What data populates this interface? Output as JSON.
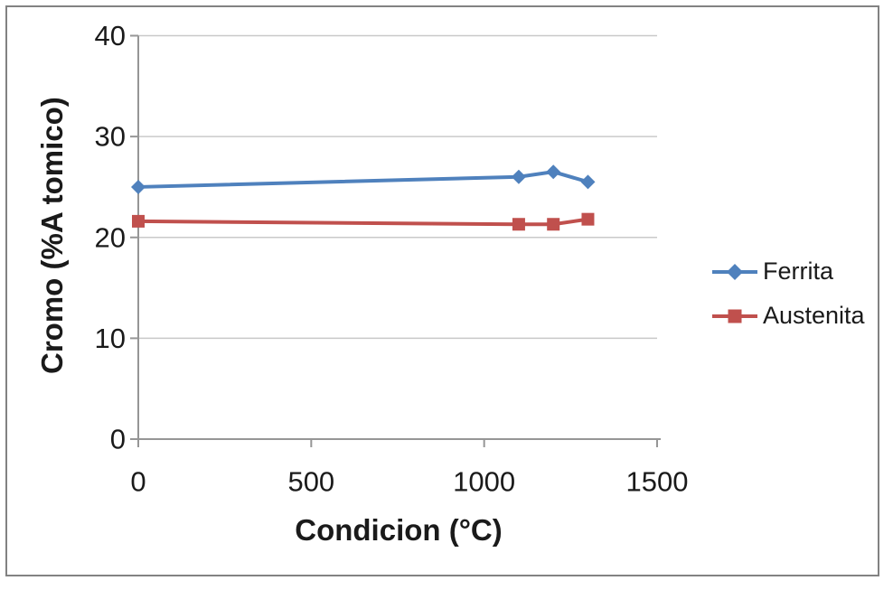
{
  "chart_data": {
    "type": "line",
    "x": [
      0,
      1100,
      1200,
      1300
    ],
    "series": [
      {
        "name": "Ferrita",
        "color": "#4F81BD",
        "marker": "diamond",
        "values": [
          25.0,
          26.0,
          26.5,
          25.5
        ]
      },
      {
        "name": "Austenita",
        "color": "#C0504D",
        "marker": "square",
        "values": [
          21.6,
          21.3,
          21.3,
          21.8
        ]
      }
    ],
    "title": "",
    "xlabel": "Condicion (°C)",
    "ylabel": "Cromo (%A tomico)",
    "xlim": [
      0,
      1500
    ],
    "ylim": [
      0,
      40
    ],
    "xticks": [
      "0",
      "500",
      "1000",
      "1500"
    ],
    "yticks": [
      "0",
      "10",
      "20",
      "30",
      "40"
    ],
    "grid": "horizontal",
    "legend_position": "right",
    "colors": {
      "gridline": "#C9C9C9",
      "axis": "#969696",
      "tick_text": "#1a1a1a",
      "frame_border": "#828282",
      "background": "#FFFFFF"
    }
  }
}
